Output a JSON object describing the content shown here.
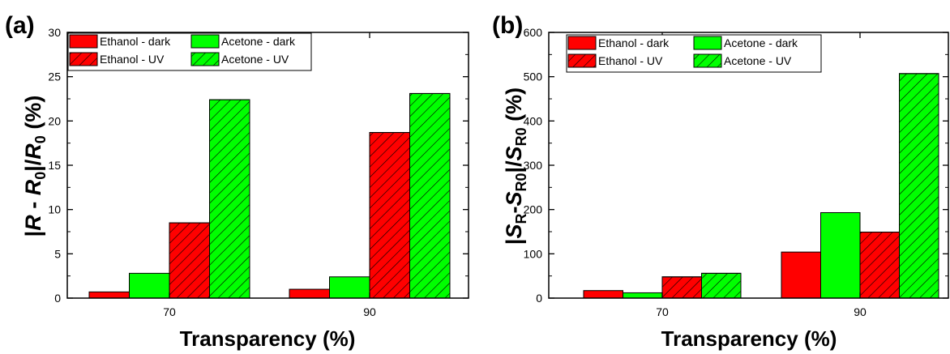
{
  "chart_data": [
    {
      "panel": "(a)",
      "type": "bar",
      "categories": [
        "70",
        "90"
      ],
      "series": [
        {
          "name": "Ethanol - dark",
          "color": "#ff0000",
          "hatched": false,
          "values": [
            0.7,
            1.0
          ]
        },
        {
          "name": "Acetone - dark",
          "color": "#00ff00",
          "hatched": false,
          "values": [
            2.8,
            2.4
          ]
        },
        {
          "name": "Ethanol - UV",
          "color": "#ff0000",
          "hatched": true,
          "values": [
            8.5,
            18.7
          ]
        },
        {
          "name": "Acetone - UV",
          "color": "#00ff00",
          "hatched": true,
          "values": [
            22.4,
            23.1
          ]
        }
      ],
      "xlabel": "Transparency (%)",
      "ylabel": "|R - R0|/R0 (%)",
      "ylim": [
        0,
        30
      ],
      "yticks": [
        "0",
        "5",
        "10",
        "15",
        "20",
        "25",
        "30"
      ],
      "legend": "top-left",
      "grid": false
    },
    {
      "panel": "(b)",
      "type": "bar",
      "categories": [
        "70",
        "90"
      ],
      "series": [
        {
          "name": "Ethanol - dark",
          "color": "#ff0000",
          "hatched": false,
          "values": [
            17,
            104
          ]
        },
        {
          "name": "Acetone - dark",
          "color": "#00ff00",
          "hatched": false,
          "values": [
            12,
            193
          ]
        },
        {
          "name": "Ethanol - UV",
          "color": "#ff0000",
          "hatched": true,
          "values": [
            48,
            149
          ]
        },
        {
          "name": "Acetone - UV",
          "color": "#00ff00",
          "hatched": true,
          "values": [
            56,
            507
          ]
        }
      ],
      "xlabel": "Transparency (%)",
      "ylabel": "|SR-SR0|/SR0 (%)",
      "ylim": [
        0,
        600
      ],
      "yticks": [
        "0",
        "100",
        "200",
        "300",
        "400",
        "500",
        "600"
      ],
      "legend": "top-left",
      "grid": false
    }
  ]
}
